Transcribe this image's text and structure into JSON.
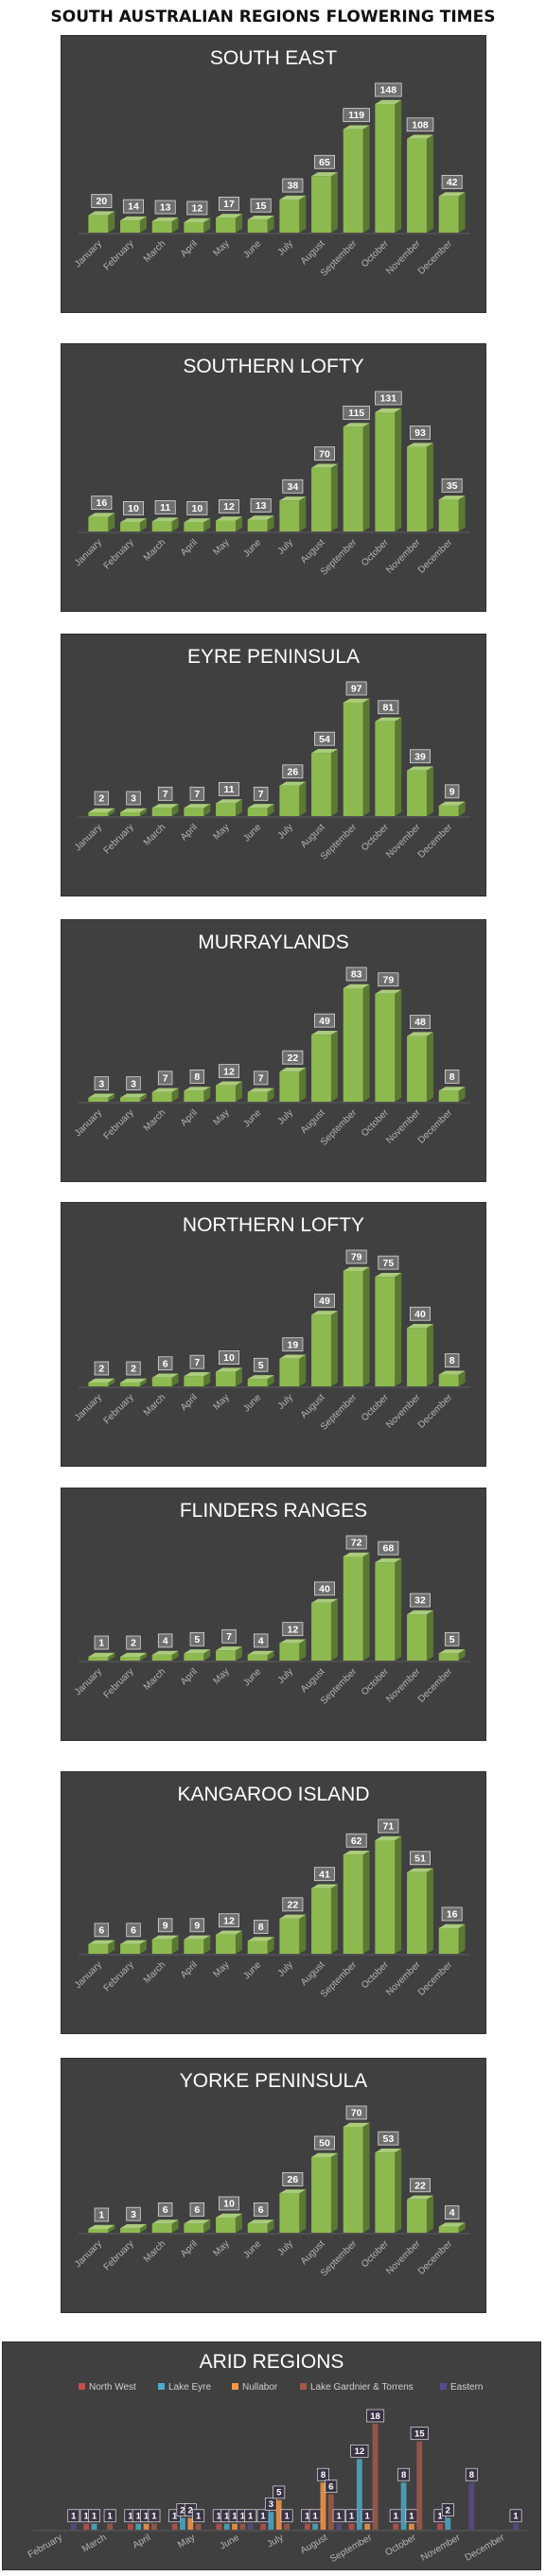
{
  "page_title": "SOUTH AUSTRALIAN REGIONS FLOWERING TIMES",
  "chart_data": [
    {
      "type": "bar",
      "title": "SOUTH EAST",
      "categories": [
        "January",
        "February",
        "March",
        "April",
        "May",
        "June",
        "July",
        "August",
        "September",
        "October",
        "November",
        "December"
      ],
      "values": [
        20,
        14,
        13,
        12,
        17,
        15,
        38,
        65,
        119,
        148,
        108,
        42
      ],
      "bar_color": "#8dba4f"
    },
    {
      "type": "bar",
      "title": "SOUTHERN LOFTY",
      "categories": [
        "January",
        "February",
        "March",
        "April",
        "May",
        "June",
        "July",
        "August",
        "September",
        "October",
        "November",
        "December"
      ],
      "values": [
        16,
        10,
        11,
        10,
        12,
        13,
        34,
        70,
        115,
        131,
        93,
        35
      ],
      "bar_color": "#8dba4f"
    },
    {
      "type": "bar",
      "title": "EYRE PENINSULA",
      "categories": [
        "January",
        "February",
        "March",
        "April",
        "May",
        "June",
        "July",
        "August",
        "September",
        "October",
        "November",
        "December"
      ],
      "values": [
        2,
        3,
        7,
        7,
        11,
        7,
        26,
        54,
        97,
        81,
        39,
        9
      ],
      "bar_color": "#8dba4f"
    },
    {
      "type": "bar",
      "title": "MURRAYLANDS",
      "categories": [
        "January",
        "February",
        "March",
        "April",
        "May",
        "June",
        "July",
        "August",
        "September",
        "October",
        "November",
        "December"
      ],
      "values": [
        3,
        3,
        7,
        8,
        12,
        7,
        22,
        49,
        83,
        79,
        48,
        8
      ],
      "bar_color": "#8dba4f"
    },
    {
      "type": "bar",
      "title": "NORTHERN LOFTY",
      "categories": [
        "January",
        "February",
        "March",
        "April",
        "May",
        "June",
        "July",
        "August",
        "September",
        "October",
        "November",
        "December"
      ],
      "values": [
        2,
        2,
        6,
        7,
        10,
        5,
        19,
        49,
        79,
        75,
        40,
        8
      ],
      "bar_color": "#8dba4f"
    },
    {
      "type": "bar",
      "title": "FLINDERS RANGES",
      "categories": [
        "January",
        "February",
        "March",
        "April",
        "May",
        "June",
        "July",
        "August",
        "September",
        "October",
        "November",
        "December"
      ],
      "values": [
        1,
        2,
        4,
        5,
        7,
        4,
        12,
        40,
        72,
        68,
        32,
        5
      ],
      "bar_color": "#8dba4f"
    },
    {
      "type": "bar",
      "title": "KANGAROO ISLAND",
      "categories": [
        "January",
        "February",
        "March",
        "April",
        "May",
        "June",
        "July",
        "August",
        "September",
        "October",
        "November",
        "December"
      ],
      "values": [
        6,
        6,
        9,
        9,
        12,
        8,
        22,
        41,
        62,
        71,
        51,
        16
      ],
      "bar_color": "#8dba4f"
    },
    {
      "type": "bar",
      "title": "YORKE PENINSULA",
      "categories": [
        "January",
        "February",
        "March",
        "April",
        "May",
        "June",
        "July",
        "August",
        "September",
        "October",
        "November",
        "December"
      ],
      "values": [
        1,
        3,
        6,
        6,
        10,
        6,
        26,
        50,
        70,
        53,
        22,
        4
      ],
      "bar_color": "#8dba4f"
    },
    {
      "type": "bar",
      "title": "ARID REGIONS",
      "legend_position": "top",
      "categories": [
        "February",
        "March",
        "April",
        "May",
        "June",
        "July",
        "August",
        "September",
        "October",
        "November",
        "December"
      ],
      "series": [
        {
          "name": "North West",
          "color": "#c0504d",
          "values": [
            0,
            1,
            1,
            1,
            1,
            1,
            1,
            1,
            1,
            1,
            0
          ]
        },
        {
          "name": "Lake Eyre",
          "color": "#4bacc6",
          "values": [
            0,
            1,
            1,
            2,
            1,
            3,
            1,
            12,
            8,
            2,
            0
          ]
        },
        {
          "name": "Nullabor",
          "color": "#f79646",
          "values": [
            0,
            0,
            1,
            2,
            1,
            5,
            8,
            1,
            1,
            0,
            0
          ]
        },
        {
          "name": "Lake Gardnier & Torrens",
          "color": "#a05a4a",
          "values": [
            0,
            1,
            1,
            1,
            1,
            1,
            6,
            18,
            15,
            0,
            0
          ]
        },
        {
          "name": "Eastern",
          "color": "#5a4a8a",
          "values": [
            1,
            0,
            0,
            0,
            1,
            0,
            1,
            0,
            0,
            8,
            1
          ]
        }
      ]
    }
  ]
}
